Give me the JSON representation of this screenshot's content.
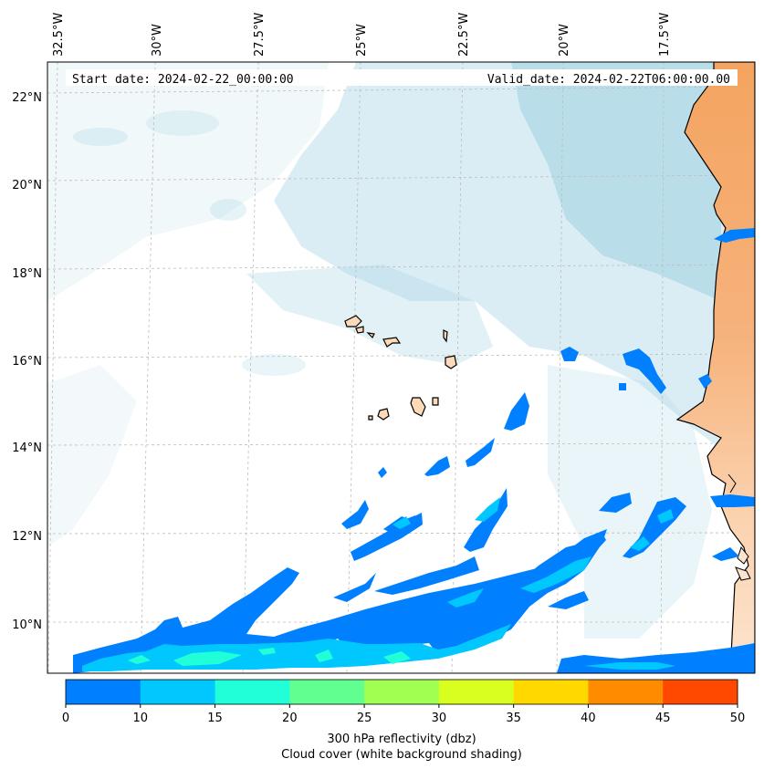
{
  "header": {
    "start_date": "Start date: 2024-02-22_00:00:00",
    "valid_date": "Valid_date: 2024-02-22T06:00:00.00"
  },
  "map": {
    "lon_labels": [
      "32.5°W",
      "30°W",
      "27.5°W",
      "25°W",
      "22.5°W",
      "20°W",
      "17.5°W"
    ],
    "lat_labels": [
      "22°N",
      "20°N",
      "18°N",
      "16°N",
      "14°N",
      "12°N",
      "10°N"
    ],
    "colors": {
      "ocean_cloud": "#add8e6",
      "land": "#f4a460",
      "land_light": "#fcd9b8",
      "coast": "#000000"
    }
  },
  "colorbar": {
    "ticks": [
      "0",
      "10",
      "15",
      "20",
      "25",
      "30",
      "35",
      "40",
      "45",
      "50"
    ],
    "colors": [
      "#0080ff",
      "#00c8ff",
      "#20ffd8",
      "#60ff90",
      "#a0ff50",
      "#d8ff20",
      "#ffd800",
      "#ff8c00",
      "#ff4800"
    ],
    "label_line1": "300 hPa reflectivity (dbz)",
    "label_line2": "Cloud cover (white background shading)"
  }
}
